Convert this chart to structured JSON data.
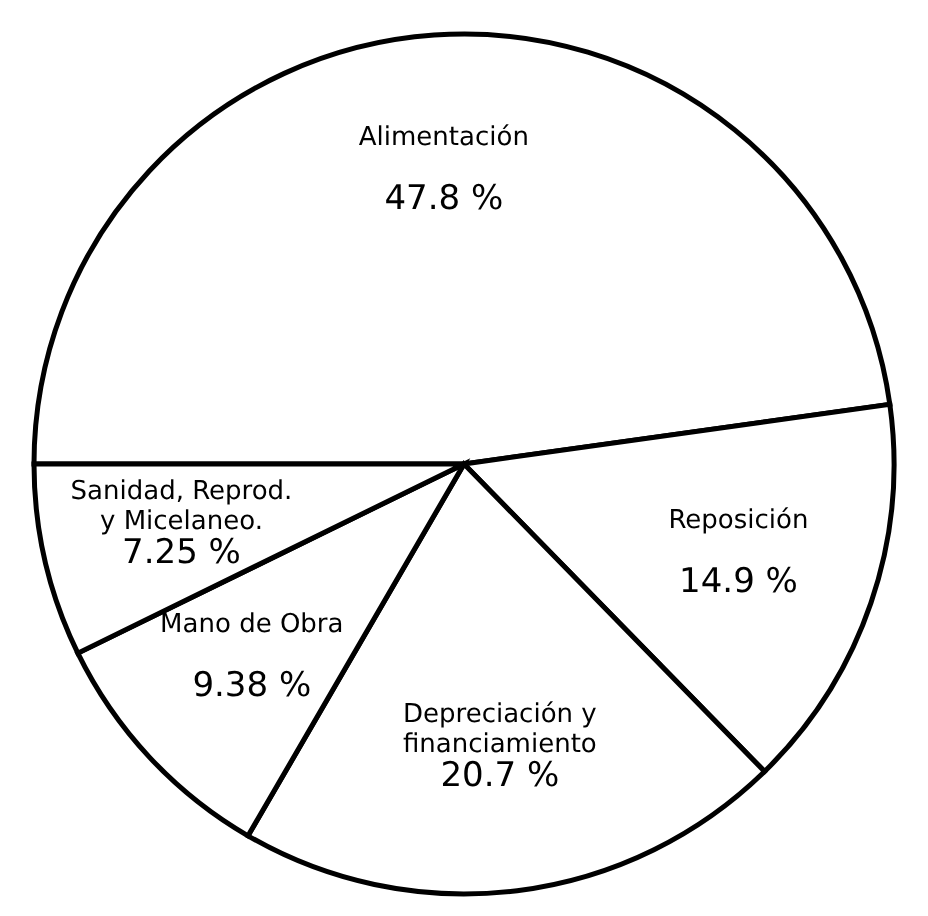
{
  "chart_data": {
    "type": "pie",
    "categories": [
      "Alimentación",
      "Reposición",
      "Depreciación y financiamiento",
      "Mano de Obra",
      "Sanidad, Reprod. y Micelaneo."
    ],
    "values": [
      47.8,
      14.9,
      20.7,
      9.38,
      7.25
    ],
    "value_labels": [
      "47.8 %",
      "14.9 %",
      "20.7 %",
      "9.38 %",
      "7.25 %"
    ],
    "colors": [
      "#ffffff",
      "#ffffff",
      "#ffffff",
      "#ffffff",
      "#ffffff"
    ],
    "legend": false
  }
}
